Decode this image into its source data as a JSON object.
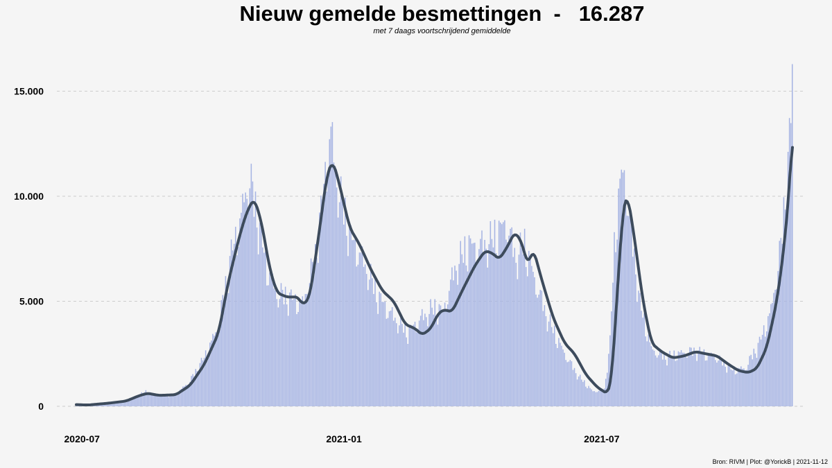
{
  "chart_data": {
    "type": "bar",
    "title": "Nieuw gemelde besmettingen  -   16.287",
    "subtitle": "met 7 daags voortschrijdend gemiddelde",
    "caption": "Bron: RIVM | Plot: @YorickB |  2021-11-12",
    "x_start": "2020-06-27",
    "x_end": "2021-11-12",
    "ylim": [
      0,
      16500
    ],
    "y_ticks": [
      {
        "value": 0,
        "label": "0"
      },
      {
        "value": 5000,
        "label": "5.000"
      },
      {
        "value": 10000,
        "label": "10.000"
      },
      {
        "value": 15000,
        "label": "15.000"
      }
    ],
    "x_ticks": [
      {
        "date": "2020-07-01",
        "label": "2020-07"
      },
      {
        "date": "2021-01-01",
        "label": "2021-01"
      },
      {
        "date": "2021-07-01",
        "label": "2021-07"
      }
    ],
    "grid": "horizontal-dashed",
    "colors": {
      "bars": "#a6b4e3",
      "line": "#3d4b5c",
      "grid": "#cccccc"
    },
    "series": [
      {
        "type": "bar",
        "points": [
          [
            "2020-06-27",
            80
          ],
          [
            "2020-07-10",
            60
          ],
          [
            "2020-07-25",
            150
          ],
          [
            "2020-08-05",
            350
          ],
          [
            "2020-08-15",
            700
          ],
          [
            "2020-08-24",
            500
          ],
          [
            "2020-09-05",
            550
          ],
          [
            "2020-09-15",
            1200
          ],
          [
            "2020-09-25",
            2300
          ],
          [
            "2020-10-05",
            3800
          ],
          [
            "2020-10-14",
            7200
          ],
          [
            "2020-10-20",
            8600
          ],
          [
            "2020-10-24",
            10100
          ],
          [
            "2020-10-27",
            10700
          ],
          [
            "2020-11-01",
            9000
          ],
          [
            "2020-11-08",
            6500
          ],
          [
            "2020-11-15",
            5300
          ],
          [
            "2020-11-25",
            5100
          ],
          [
            "2020-12-03",
            4800
          ],
          [
            "2020-12-12",
            7000
          ],
          [
            "2020-12-20",
            11500
          ],
          [
            "2020-12-23",
            12900
          ],
          [
            "2020-12-28",
            10200
          ],
          [
            "2021-01-06",
            8000
          ],
          [
            "2021-01-15",
            6800
          ],
          [
            "2021-01-25",
            5200
          ],
          [
            "2021-02-05",
            4200
          ],
          [
            "2021-02-15",
            3500
          ],
          [
            "2021-02-25",
            4200
          ],
          [
            "2021-03-05",
            4600
          ],
          [
            "2021-03-12",
            4500
          ],
          [
            "2021-03-20",
            6500
          ],
          [
            "2021-03-30",
            7600
          ],
          [
            "2021-04-05",
            7500
          ],
          [
            "2021-04-15",
            7800
          ],
          [
            "2021-04-25",
            8700
          ],
          [
            "2021-05-02",
            7000
          ],
          [
            "2021-05-08",
            7600
          ],
          [
            "2021-05-15",
            6000
          ],
          [
            "2021-05-25",
            4000
          ],
          [
            "2021-06-05",
            2500
          ],
          [
            "2021-06-15",
            1400
          ],
          [
            "2021-06-25",
            700
          ],
          [
            "2021-07-03",
            800
          ],
          [
            "2021-07-07",
            3000
          ],
          [
            "2021-07-10",
            7500
          ],
          [
            "2021-07-14",
            10500
          ],
          [
            "2021-07-17",
            11100
          ],
          [
            "2021-07-20",
            9300
          ],
          [
            "2021-07-28",
            4800
          ],
          [
            "2021-08-05",
            2700
          ],
          [
            "2021-08-15",
            2300
          ],
          [
            "2021-08-25",
            2500
          ],
          [
            "2021-09-05",
            2600
          ],
          [
            "2021-09-20",
            2300
          ],
          [
            "2021-10-01",
            1700
          ],
          [
            "2021-10-10",
            1800
          ],
          [
            "2021-10-20",
            3000
          ],
          [
            "2021-10-28",
            4500
          ],
          [
            "2021-11-04",
            7500
          ],
          [
            "2021-11-09",
            11500
          ],
          [
            "2021-11-11",
            13500
          ],
          [
            "2021-11-12",
            16287
          ]
        ]
      },
      {
        "type": "line",
        "name": "7 daags voortschrijdend gemiddelde",
        "points": [
          [
            "2020-06-27",
            80
          ],
          [
            "2020-07-05",
            60
          ],
          [
            "2020-07-20",
            150
          ],
          [
            "2020-08-01",
            250
          ],
          [
            "2020-08-10",
            500
          ],
          [
            "2020-08-16",
            620
          ],
          [
            "2020-08-24",
            520
          ],
          [
            "2020-09-05",
            550
          ],
          [
            "2020-09-15",
            1000
          ],
          [
            "2020-09-25",
            2000
          ],
          [
            "2020-10-05",
            3500
          ],
          [
            "2020-10-12",
            6000
          ],
          [
            "2020-10-20",
            8200
          ],
          [
            "2020-10-25",
            9300
          ],
          [
            "2020-10-30",
            9900
          ],
          [
            "2020-11-04",
            8800
          ],
          [
            "2020-11-10",
            6500
          ],
          [
            "2020-11-15",
            5400
          ],
          [
            "2020-11-22",
            5200
          ],
          [
            "2020-11-30",
            5200
          ],
          [
            "2020-12-03",
            4800
          ],
          [
            "2020-12-08",
            5200
          ],
          [
            "2020-12-14",
            8000
          ],
          [
            "2020-12-20",
            11000
          ],
          [
            "2020-12-24",
            11700
          ],
          [
            "2020-12-28",
            10800
          ],
          [
            "2021-01-05",
            8500
          ],
          [
            "2021-01-12",
            7700
          ],
          [
            "2021-01-20",
            6500
          ],
          [
            "2021-01-28",
            5500
          ],
          [
            "2021-02-05",
            5000
          ],
          [
            "2021-02-13",
            3900
          ],
          [
            "2021-02-20",
            3700
          ],
          [
            "2021-02-25",
            3400
          ],
          [
            "2021-03-03",
            3700
          ],
          [
            "2021-03-08",
            4400
          ],
          [
            "2021-03-12",
            4600
          ],
          [
            "2021-03-18",
            4500
          ],
          [
            "2021-03-25",
            5500
          ],
          [
            "2021-04-03",
            6700
          ],
          [
            "2021-04-10",
            7400
          ],
          [
            "2021-04-15",
            7300
          ],
          [
            "2021-04-20",
            7000
          ],
          [
            "2021-04-25",
            7500
          ],
          [
            "2021-05-01",
            8300
          ],
          [
            "2021-05-06",
            7800
          ],
          [
            "2021-05-10",
            6700
          ],
          [
            "2021-05-14",
            7500
          ],
          [
            "2021-05-20",
            6000
          ],
          [
            "2021-05-28",
            4200
          ],
          [
            "2021-06-05",
            3000
          ],
          [
            "2021-06-12",
            2500
          ],
          [
            "2021-06-20",
            1500
          ],
          [
            "2021-06-28",
            900
          ],
          [
            "2021-07-05",
            600
          ],
          [
            "2021-07-08",
            1200
          ],
          [
            "2021-07-12",
            5500
          ],
          [
            "2021-07-16",
            9500
          ],
          [
            "2021-07-19",
            10100
          ],
          [
            "2021-07-23",
            8500
          ],
          [
            "2021-07-30",
            5000
          ],
          [
            "2021-08-05",
            3000
          ],
          [
            "2021-08-12",
            2600
          ],
          [
            "2021-08-20",
            2300
          ],
          [
            "2021-08-28",
            2400
          ],
          [
            "2021-09-05",
            2600
          ],
          [
            "2021-09-12",
            2500
          ],
          [
            "2021-09-20",
            2400
          ],
          [
            "2021-09-28",
            2000
          ],
          [
            "2021-10-05",
            1700
          ],
          [
            "2021-10-12",
            1600
          ],
          [
            "2021-10-18",
            1800
          ],
          [
            "2021-10-25",
            2800
          ],
          [
            "2021-11-01",
            5000
          ],
          [
            "2021-11-06",
            7500
          ],
          [
            "2021-11-10",
            10500
          ],
          [
            "2021-11-12",
            13100
          ]
        ]
      }
    ]
  }
}
